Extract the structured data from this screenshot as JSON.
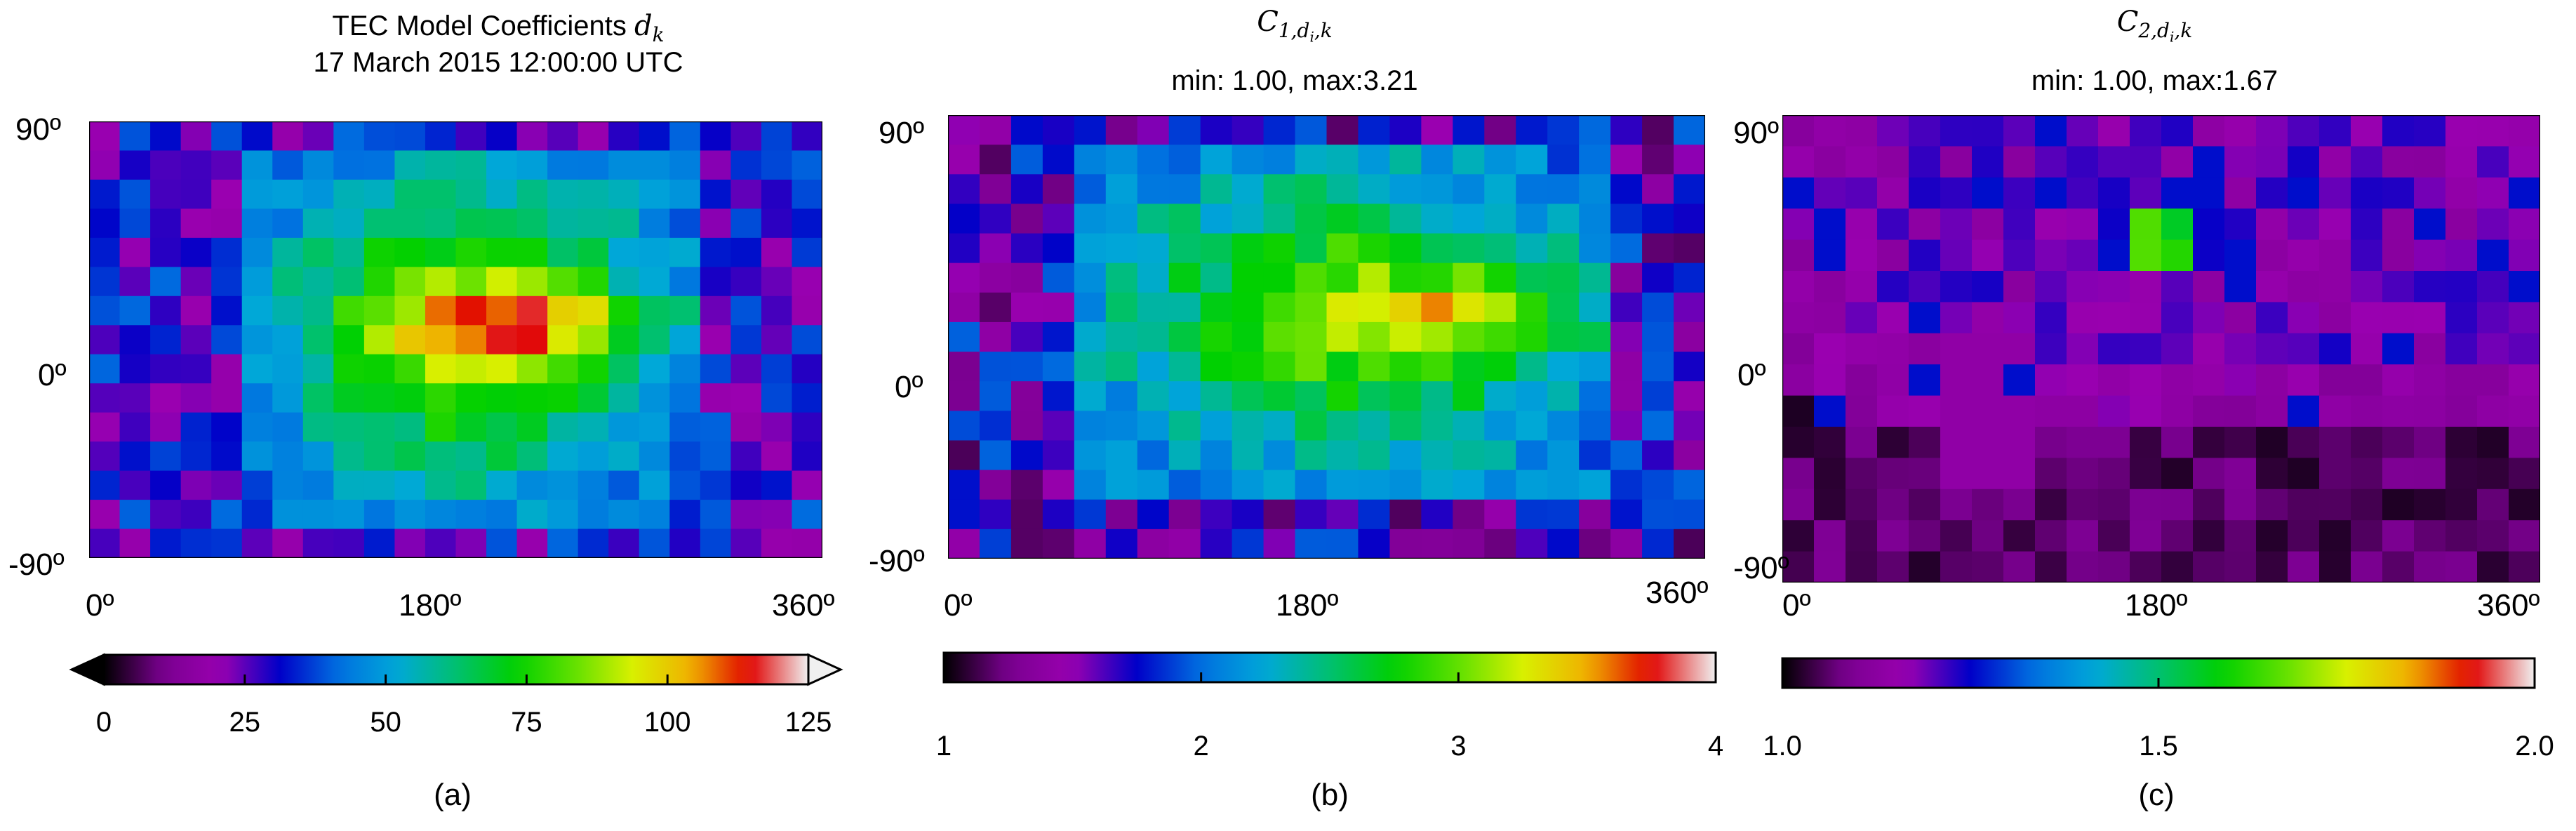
{
  "chart_data": [
    {
      "type": "heatmap",
      "panel": "a",
      "title": "TEC Model Coefficients",
      "title_symbol": "d",
      "title_symbol_sub": "k",
      "subtitle": "17 March 2015 12:00:00 UTC",
      "x_ticks": [
        "0º",
        "180º",
        "360º"
      ],
      "y_ticks": [
        "90º",
        "0º",
        "-90º"
      ],
      "xlim": [
        0,
        360
      ],
      "ylim": [
        -90,
        90
      ],
      "grid": {
        "rows": 15,
        "cols": 24
      },
      "colorbar": {
        "ticks": [
          0,
          25,
          50,
          75,
          100,
          125
        ],
        "tick_labels": [
          "0",
          "25",
          "50",
          "75",
          "100",
          "125"
        ],
        "range": [
          0,
          125
        ],
        "extend": "both"
      },
      "caption": "(a)"
    },
    {
      "type": "heatmap",
      "panel": "b",
      "title_symbol": "C",
      "title_symbol_sub": "1,d",
      "title_symbol_subsub": "i",
      "title_symbol_sub_tail": ",k",
      "subtitle": "min: 1.00, max:3.21",
      "stats": {
        "min": 1.0,
        "max": 3.21
      },
      "x_ticks": [
        "0º",
        "180º",
        "360º"
      ],
      "y_ticks": [
        "90º",
        "0º",
        "-90º"
      ],
      "xlim": [
        0,
        360
      ],
      "ylim": [
        -90,
        90
      ],
      "grid": {
        "rows": 15,
        "cols": 24
      },
      "colorbar": {
        "ticks": [
          1,
          2,
          3,
          4
        ],
        "tick_labels": [
          "1",
          "2",
          "3",
          "4"
        ],
        "range": [
          1,
          4
        ],
        "extend": "neither"
      },
      "caption": "(b)"
    },
    {
      "type": "heatmap",
      "panel": "c",
      "title_symbol": "C",
      "title_symbol_sub": "2,d",
      "title_symbol_subsub": "i",
      "title_symbol_sub_tail": ",k",
      "subtitle": "min: 1.00, max:1.67",
      "stats": {
        "min": 1.0,
        "max": 1.67
      },
      "x_ticks": [
        "0º",
        "180º",
        "360º"
      ],
      "y_ticks": [
        "90º",
        "0º",
        "-90º"
      ],
      "xlim": [
        0,
        360
      ],
      "ylim": [
        -90,
        90
      ],
      "grid": {
        "rows": 15,
        "cols": 24
      },
      "colorbar": {
        "ticks": [
          1.0,
          1.5,
          2.0
        ],
        "tick_labels": [
          "1.0",
          "1.5",
          "2.0"
        ],
        "range": [
          1.0,
          2.0
        ],
        "extend": "neither"
      },
      "caption": "(c)"
    }
  ],
  "colormap": [
    "#000000",
    "#7a0090",
    "#9a00b0",
    "#0000c8",
    "#0070e0",
    "#00a8d8",
    "#00c070",
    "#00d000",
    "#60e000",
    "#d8f000",
    "#f0b000",
    "#e00000",
    "#f0f0f0"
  ]
}
